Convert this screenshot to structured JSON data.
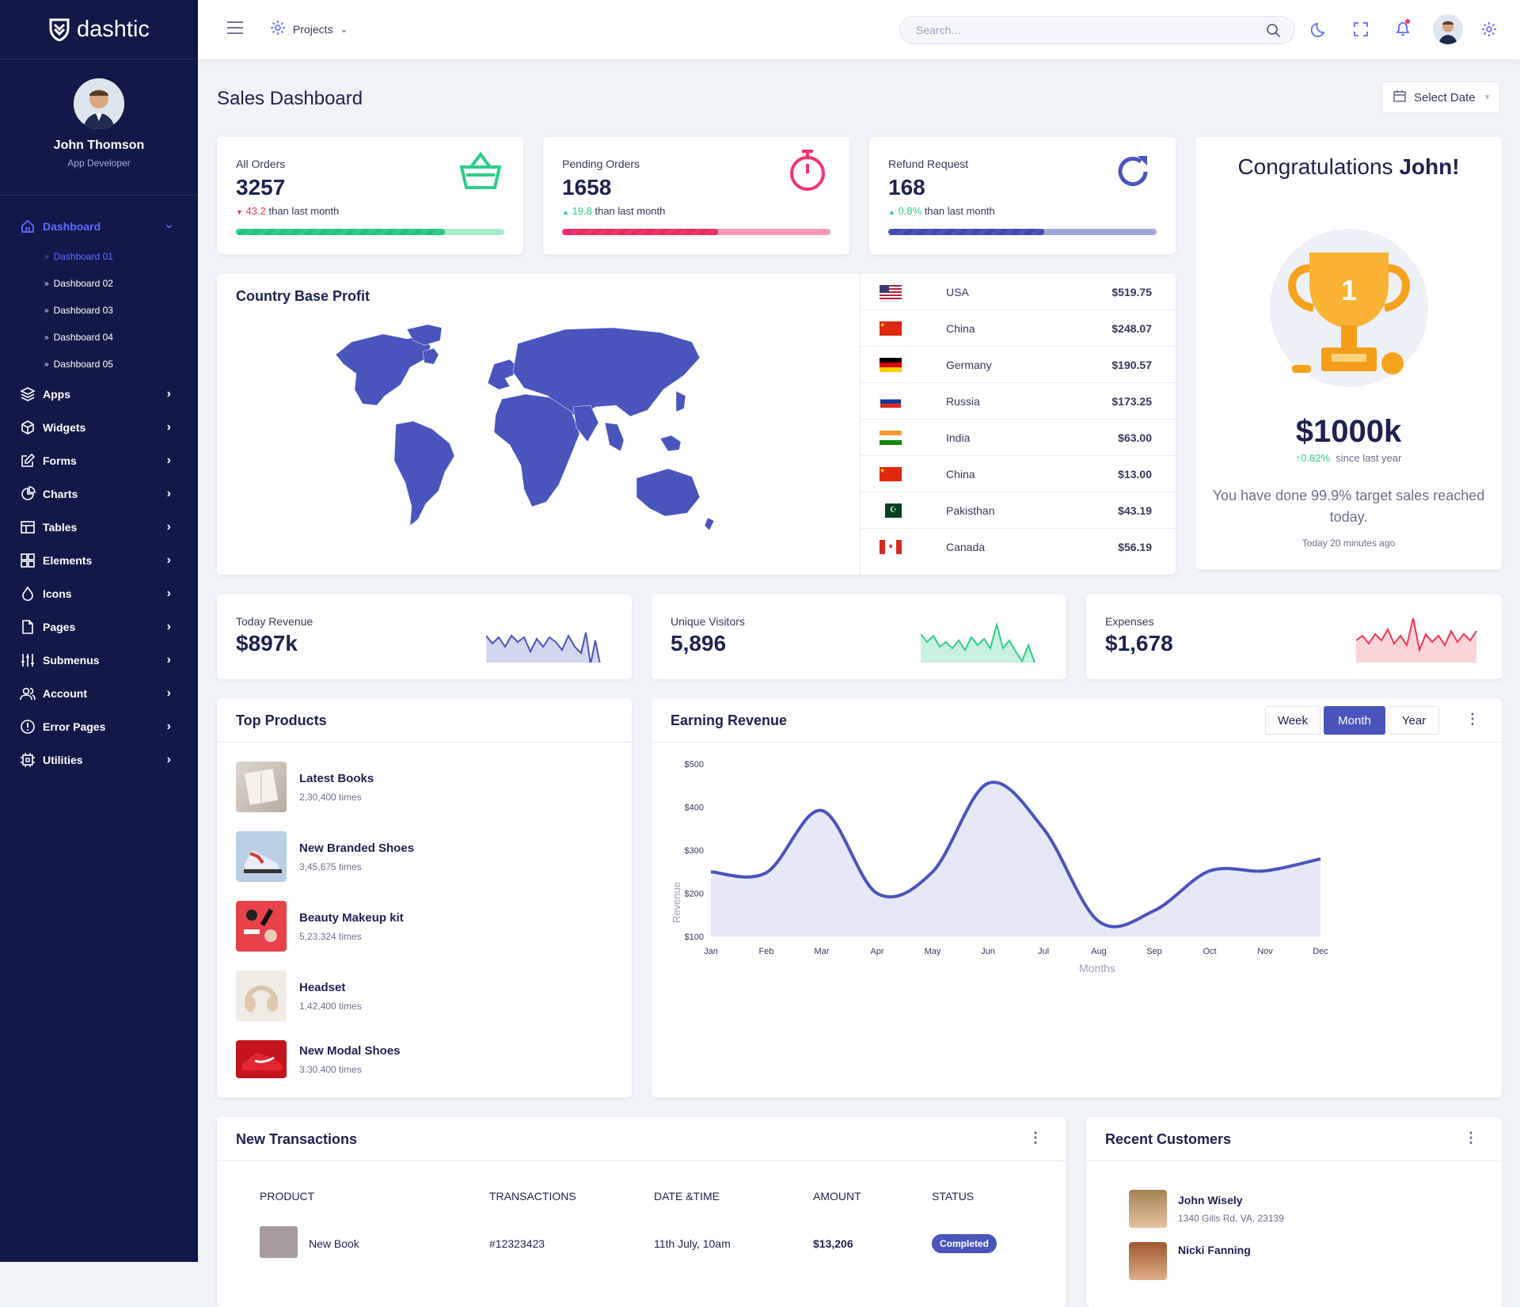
{
  "brand": {
    "name": "dashtic"
  },
  "profile": {
    "name": "John Thomson",
    "role": "App Developer"
  },
  "sidebar": {
    "dashboard": "Dashboard",
    "subitems": [
      "Dashboard 01",
      "Dashboard 02",
      "Dashboard 03",
      "Dashboard 04",
      "Dashboard 05"
    ],
    "items": [
      "Apps",
      "Widgets",
      "Forms",
      "Charts",
      "Tables",
      "Elements",
      "Icons",
      "Pages",
      "Submenus",
      "Account",
      "Error Pages",
      "Utilities"
    ]
  },
  "topbar": {
    "projects": "Projects",
    "search_placeholder": "Search..."
  },
  "page": {
    "title": "Sales Dashboard",
    "select_date": "Select Date"
  },
  "kpis": [
    {
      "label": "All Orders",
      "value": "3257",
      "delta": "43.2",
      "suffix": "than last month",
      "progress": 0.78,
      "color": "#2dce89"
    },
    {
      "label": "Pending Orders",
      "value": "1658",
      "delta": "19.8",
      "suffix": "than last month",
      "progress": 0.58,
      "color": "#f5336e"
    },
    {
      "label": "Refund Request",
      "value": "168",
      "delta": "0.8%",
      "suffix": "than last month",
      "progress": 0.58,
      "color": "#4a54bd"
    }
  ],
  "congrats": {
    "title_pre": "Congratulations",
    "title_name": "John!",
    "amount": "$1000k",
    "change": "0.82%",
    "since": "since last year",
    "message": "You have done 99.9% target sales reached today.",
    "time": "Today 20 minutes ago",
    "trophy_number": "1"
  },
  "country_profit": {
    "title": "Country Base Profit",
    "rows": [
      {
        "country": "USA",
        "amount": "$519.75"
      },
      {
        "country": "China",
        "amount": "$248.07"
      },
      {
        "country": "Germany",
        "amount": "$190.57"
      },
      {
        "country": "Russia",
        "amount": "$173.25"
      },
      {
        "country": "India",
        "amount": "$63.00"
      },
      {
        "country": "China",
        "amount": "$13.00"
      },
      {
        "country": "Pakisthan",
        "amount": "$43.19"
      },
      {
        "country": "Canada",
        "amount": "$56.19"
      }
    ]
  },
  "minis": [
    {
      "label": "Today Revenue",
      "value": "$897k",
      "color": "#4a54bd"
    },
    {
      "label": "Unique Visitors",
      "value": "5,896",
      "color": "#2dce89"
    },
    {
      "label": "Expenses",
      "value": "$1,678",
      "color": "#f5334f"
    }
  ],
  "top_products": {
    "title": "Top Products",
    "items": [
      {
        "name": "Latest Books",
        "times": "2,30,400 times"
      },
      {
        "name": "New Branded Shoes",
        "times": "3,45,675 times"
      },
      {
        "name": "Beauty Makeup kit",
        "times": "5,23,324 times"
      },
      {
        "name": "Headset",
        "times": "1,42,400 times"
      },
      {
        "name": "New Modal Shoes",
        "times": "3.30.400 times"
      }
    ]
  },
  "earning": {
    "title": "Earning Revenue",
    "tabs": [
      "Week",
      "Month",
      "Year"
    ],
    "active_tab": "Month"
  },
  "chart_data": {
    "type": "area",
    "categories": [
      "Jan",
      "Feb",
      "Mar",
      "Apr",
      "May",
      "Jun",
      "Jul",
      "Aug",
      "Sep",
      "Oct",
      "Nov",
      "Dec"
    ],
    "series": [
      {
        "values": [
          250,
          248,
          392,
          200,
          250,
          455,
          350,
          135,
          160,
          252,
          252,
          280
        ]
      }
    ],
    "ylabel": "Revenue",
    "xlabel": "Months",
    "yticks": [
      "$100",
      "$200",
      "$300",
      "$400",
      "$500"
    ],
    "ylim": [
      100,
      500
    ],
    "grid": false,
    "color": "#4a54bd"
  },
  "transactions": {
    "title": "New Transactions",
    "headers": [
      "PRODUCT",
      "TRANSACTIONS",
      "DATE &TIME",
      "AMOUNT",
      "STATUS"
    ],
    "rows": [
      {
        "product": "New Book",
        "id": "#12323423",
        "date": "11th July, 10am",
        "amount": "$13,206",
        "status": "Completed"
      }
    ]
  },
  "customers": {
    "title": "Recent Customers",
    "items": [
      {
        "name": "John Wisely",
        "address": "1340 Gills Rd, VA, 23139"
      },
      {
        "name": "Nicki Fanning",
        "address": ""
      }
    ]
  }
}
